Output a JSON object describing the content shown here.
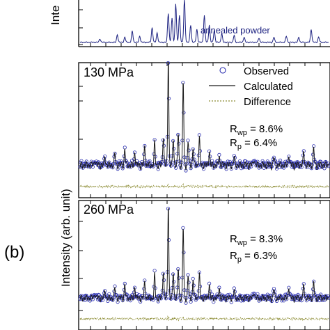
{
  "figure_label": "(b)",
  "y_axis_label_top": "Inte",
  "y_axis_label_bottom": "Intensity (arb. unit)",
  "colors": {
    "observed": "#2b2fb0",
    "calculated": "#1a1a1a",
    "difference": "#8a8a30",
    "annotation": "#1c2180"
  },
  "legend": {
    "observed": "Observed",
    "calculated": "Calculated",
    "difference": "Difference"
  },
  "chart_data": [
    {
      "type": "line",
      "annotation": "annealed powder",
      "ylim": [
        0,
        1
      ],
      "series": [
        {
          "peaks": [
            [
              0.08,
              0.08
            ],
            [
              0.15,
              0.18
            ],
            [
              0.18,
              0.12
            ],
            [
              0.21,
              0.26
            ],
            [
              0.24,
              0.14
            ],
            [
              0.29,
              0.34
            ],
            [
              0.31,
              0.22
            ],
            [
              0.355,
              0.68
            ],
            [
              0.37,
              0.55
            ],
            [
              0.385,
              0.9
            ],
            [
              0.4,
              0.62
            ],
            [
              0.42,
              1.0
            ],
            [
              0.445,
              0.4
            ],
            [
              0.47,
              0.3
            ],
            [
              0.5,
              0.62
            ],
            [
              0.52,
              0.4
            ],
            [
              0.54,
              0.28
            ],
            [
              0.57,
              0.2
            ],
            [
              0.62,
              0.16
            ],
            [
              0.66,
              0.12
            ],
            [
              0.72,
              0.1
            ],
            [
              0.78,
              0.12
            ],
            [
              0.83,
              0.14
            ],
            [
              0.88,
              0.12
            ],
            [
              0.93,
              0.3
            ],
            [
              0.96,
              0.12
            ]
          ]
        }
      ]
    },
    {
      "type": "line",
      "title": "130 MPa",
      "stats": {
        "rwp_label": "R",
        "rwp_sub": "wp",
        "rwp_value": " = 8.6%",
        "rp_label": "R",
        "rp_sub": "p",
        "rp_value": " = 6.4%"
      },
      "ylim": [
        0,
        1
      ],
      "series": [
        {
          "name": "Observed",
          "peaks": [
            [
              0.06,
              0.05
            ],
            [
              0.1,
              0.08
            ],
            [
              0.14,
              0.1
            ],
            [
              0.18,
              0.14
            ],
            [
              0.22,
              0.12
            ],
            [
              0.26,
              0.16
            ],
            [
              0.3,
              0.2
            ],
            [
              0.335,
              0.28
            ],
            [
              0.355,
              1.0
            ],
            [
              0.375,
              0.25
            ],
            [
              0.395,
              0.3
            ],
            [
              0.415,
              0.78
            ],
            [
              0.435,
              0.22
            ],
            [
              0.455,
              0.16
            ],
            [
              0.48,
              0.24
            ],
            [
              0.52,
              0.12
            ],
            [
              0.56,
              0.08
            ],
            [
              0.62,
              0.07
            ],
            [
              0.7,
              0.06
            ],
            [
              0.78,
              0.08
            ],
            [
              0.84,
              0.1
            ],
            [
              0.9,
              0.12
            ],
            [
              0.94,
              0.15
            ]
          ]
        }
      ]
    },
    {
      "type": "line",
      "title": "260 MPa",
      "stats": {
        "rwp_label": "R",
        "rwp_sub": "wp",
        "rwp_value": " = 8.3%",
        "rp_label": "R",
        "rp_sub": "p",
        "rp_value": " = 6.3%"
      },
      "ylim": [
        0,
        1
      ],
      "series": [
        {
          "name": "Observed",
          "peaks": [
            [
              0.06,
              0.05
            ],
            [
              0.1,
              0.08
            ],
            [
              0.14,
              0.1
            ],
            [
              0.18,
              0.14
            ],
            [
              0.22,
              0.12
            ],
            [
              0.26,
              0.16
            ],
            [
              0.3,
              0.24
            ],
            [
              0.335,
              0.3
            ],
            [
              0.355,
              1.0
            ],
            [
              0.375,
              0.28
            ],
            [
              0.395,
              0.32
            ],
            [
              0.415,
              0.75
            ],
            [
              0.435,
              0.24
            ],
            [
              0.455,
              0.2
            ],
            [
              0.48,
              0.24
            ],
            [
              0.52,
              0.14
            ],
            [
              0.56,
              0.1
            ],
            [
              0.62,
              0.08
            ],
            [
              0.7,
              0.07
            ],
            [
              0.78,
              0.1
            ],
            [
              0.84,
              0.12
            ],
            [
              0.9,
              0.14
            ],
            [
              0.94,
              0.16
            ]
          ]
        }
      ]
    }
  ]
}
